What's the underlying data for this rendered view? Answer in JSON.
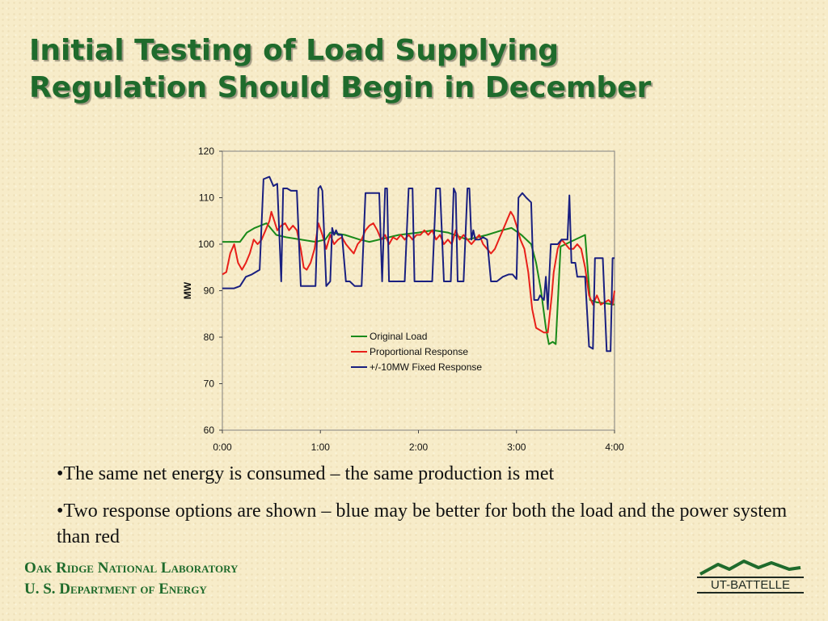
{
  "title_line1": "Initial Testing of Load Supplying",
  "title_line2": "Regulation Should Begin in December",
  "bullets": [
    "•The same net energy is consumed – the same production is met",
    "•Two response options are shown – blue may be better for both the load and the power system than red"
  ],
  "footer": {
    "org_line1": "Oak Ridge National Laboratory",
    "org_line2": "U. S. Department of Energy",
    "logo_text": "UT-BATTELLE"
  },
  "colors": {
    "title": "#1f6b2c",
    "original": "#1a8a1a",
    "proportional": "#e8201a",
    "fixed": "#1a2080"
  },
  "chart_data": {
    "type": "line",
    "ylabel": "MW",
    "xlabel": "",
    "ylim": [
      60,
      120
    ],
    "yticks": [
      "60",
      "70",
      "80",
      "90",
      "100",
      "110",
      "120"
    ],
    "xlim": [
      0,
      4
    ],
    "xticks": [
      "0:00",
      "1:00",
      "2:00",
      "3:00",
      "4:00"
    ],
    "legend_position": "center",
    "series": [
      {
        "name": "Original Load",
        "color": "#1a8a1a",
        "points": [
          [
            0,
            100.5
          ],
          [
            0.08,
            100.5
          ],
          [
            0.18,
            100.5
          ],
          [
            0.25,
            102.5
          ],
          [
            0.33,
            103.5
          ],
          [
            0.45,
            104.5
          ],
          [
            0.55,
            102
          ],
          [
            0.65,
            101.5
          ],
          [
            0.8,
            101
          ],
          [
            0.95,
            100.5
          ],
          [
            1.05,
            101
          ],
          [
            1.1,
            102.5
          ],
          [
            1.25,
            102
          ],
          [
            1.4,
            101
          ],
          [
            1.5,
            100.5
          ],
          [
            1.6,
            101
          ],
          [
            1.8,
            102
          ],
          [
            2.0,
            102.5
          ],
          [
            2.15,
            103
          ],
          [
            2.3,
            102.5
          ],
          [
            2.5,
            101
          ],
          [
            2.7,
            102
          ],
          [
            2.85,
            103
          ],
          [
            2.95,
            103.5
          ],
          [
            3.05,
            102
          ],
          [
            3.15,
            100
          ],
          [
            3.2,
            96
          ],
          [
            3.25,
            90
          ],
          [
            3.3,
            82
          ],
          [
            3.33,
            78.5
          ],
          [
            3.37,
            79
          ],
          [
            3.4,
            78.5
          ],
          [
            3.45,
            99.5
          ],
          [
            3.55,
            100.5
          ],
          [
            3.65,
            101.5
          ],
          [
            3.7,
            102
          ],
          [
            3.75,
            88
          ],
          [
            3.82,
            87.5
          ],
          [
            3.9,
            87.3
          ],
          [
            4.0,
            87
          ]
        ]
      },
      {
        "name": "Proportional Response",
        "color": "#e8201a",
        "points": [
          [
            0,
            93.5
          ],
          [
            0.04,
            94
          ],
          [
            0.08,
            98
          ],
          [
            0.12,
            100
          ],
          [
            0.16,
            96
          ],
          [
            0.2,
            94.5
          ],
          [
            0.24,
            96
          ],
          [
            0.28,
            98
          ],
          [
            0.32,
            101
          ],
          [
            0.36,
            100
          ],
          [
            0.4,
            101
          ],
          [
            0.44,
            103
          ],
          [
            0.48,
            105
          ],
          [
            0.5,
            107
          ],
          [
            0.53,
            105
          ],
          [
            0.56,
            103
          ],
          [
            0.6,
            104
          ],
          [
            0.64,
            104.5
          ],
          [
            0.68,
            103
          ],
          [
            0.72,
            104
          ],
          [
            0.76,
            103
          ],
          [
            0.8,
            99
          ],
          [
            0.83,
            95
          ],
          [
            0.86,
            94.5
          ],
          [
            0.9,
            96
          ],
          [
            0.94,
            99
          ],
          [
            0.98,
            104.5
          ],
          [
            1.02,
            102
          ],
          [
            1.06,
            99
          ],
          [
            1.1,
            102
          ],
          [
            1.14,
            100
          ],
          [
            1.18,
            101
          ],
          [
            1.22,
            101.5
          ],
          [
            1.26,
            100
          ],
          [
            1.3,
            99
          ],
          [
            1.34,
            98
          ],
          [
            1.38,
            100
          ],
          [
            1.42,
            101
          ],
          [
            1.46,
            103
          ],
          [
            1.5,
            104
          ],
          [
            1.54,
            104.5
          ],
          [
            1.58,
            103
          ],
          [
            1.62,
            101
          ],
          [
            1.66,
            102
          ],
          [
            1.7,
            100
          ],
          [
            1.74,
            101.5
          ],
          [
            1.78,
            101
          ],
          [
            1.82,
            102
          ],
          [
            1.86,
            101
          ],
          [
            1.9,
            102
          ],
          [
            1.94,
            101
          ],
          [
            1.98,
            102
          ],
          [
            2.02,
            102
          ],
          [
            2.06,
            103
          ],
          [
            2.1,
            102
          ],
          [
            2.14,
            103
          ],
          [
            2.18,
            101
          ],
          [
            2.22,
            102
          ],
          [
            2.26,
            100
          ],
          [
            2.3,
            101
          ],
          [
            2.34,
            100
          ],
          [
            2.38,
            103
          ],
          [
            2.42,
            101
          ],
          [
            2.46,
            102
          ],
          [
            2.5,
            101
          ],
          [
            2.54,
            100
          ],
          [
            2.58,
            101
          ],
          [
            2.62,
            102
          ],
          [
            2.66,
            100
          ],
          [
            2.7,
            99
          ],
          [
            2.74,
            98
          ],
          [
            2.78,
            99
          ],
          [
            2.82,
            101
          ],
          [
            2.86,
            103
          ],
          [
            2.9,
            105
          ],
          [
            2.94,
            107
          ],
          [
            2.97,
            106
          ],
          [
            3.0,
            104
          ],
          [
            3.04,
            101
          ],
          [
            3.08,
            99
          ],
          [
            3.12,
            94
          ],
          [
            3.16,
            86
          ],
          [
            3.2,
            82
          ],
          [
            3.24,
            81.5
          ],
          [
            3.28,
            81
          ],
          [
            3.32,
            81
          ],
          [
            3.36,
            89
          ],
          [
            3.38,
            94
          ],
          [
            3.42,
            99
          ],
          [
            3.46,
            101
          ],
          [
            3.5,
            100
          ],
          [
            3.54,
            99
          ],
          [
            3.58,
            99
          ],
          [
            3.62,
            100
          ],
          [
            3.66,
            99
          ],
          [
            3.7,
            95
          ],
          [
            3.74,
            89
          ],
          [
            3.78,
            87
          ],
          [
            3.82,
            89
          ],
          [
            3.86,
            87
          ],
          [
            3.9,
            87.5
          ],
          [
            3.94,
            88
          ],
          [
            3.98,
            87
          ],
          [
            4.0,
            90
          ]
        ]
      },
      {
        "name": "+/-10MW Fixed Response",
        "color": "#1a2080",
        "points": [
          [
            0,
            90.5
          ],
          [
            0.06,
            90.5
          ],
          [
            0.12,
            90.5
          ],
          [
            0.18,
            91
          ],
          [
            0.24,
            93
          ],
          [
            0.3,
            93.5
          ],
          [
            0.38,
            94.5
          ],
          [
            0.42,
            114
          ],
          [
            0.48,
            114.5
          ],
          [
            0.52,
            112.5
          ],
          [
            0.56,
            113
          ],
          [
            0.6,
            92
          ],
          [
            0.62,
            112
          ],
          [
            0.66,
            112
          ],
          [
            0.7,
            111.5
          ],
          [
            0.76,
            111.5
          ],
          [
            0.8,
            91
          ],
          [
            0.84,
            91
          ],
          [
            0.9,
            91
          ],
          [
            0.95,
            91
          ],
          [
            0.98,
            112
          ],
          [
            1.0,
            112.5
          ],
          [
            1.02,
            111.5
          ],
          [
            1.06,
            91
          ],
          [
            1.1,
            92
          ],
          [
            1.12,
            103.5
          ],
          [
            1.14,
            102
          ],
          [
            1.16,
            103
          ],
          [
            1.18,
            102
          ],
          [
            1.22,
            102
          ],
          [
            1.26,
            92
          ],
          [
            1.3,
            92
          ],
          [
            1.35,
            91
          ],
          [
            1.42,
            91
          ],
          [
            1.46,
            111
          ],
          [
            1.5,
            111
          ],
          [
            1.55,
            111
          ],
          [
            1.6,
            111
          ],
          [
            1.63,
            92
          ],
          [
            1.66,
            112
          ],
          [
            1.68,
            112
          ],
          [
            1.7,
            92
          ],
          [
            1.76,
            92
          ],
          [
            1.82,
            92
          ],
          [
            1.86,
            92
          ],
          [
            1.9,
            112
          ],
          [
            1.94,
            112
          ],
          [
            1.96,
            92
          ],
          [
            2.02,
            92
          ],
          [
            2.08,
            92
          ],
          [
            2.14,
            92
          ],
          [
            2.18,
            112
          ],
          [
            2.22,
            112
          ],
          [
            2.26,
            92
          ],
          [
            2.3,
            92
          ],
          [
            2.33,
            92
          ],
          [
            2.36,
            112
          ],
          [
            2.38,
            111
          ],
          [
            2.4,
            92
          ],
          [
            2.46,
            92
          ],
          [
            2.5,
            112
          ],
          [
            2.52,
            112
          ],
          [
            2.54,
            101
          ],
          [
            2.56,
            103
          ],
          [
            2.58,
            101
          ],
          [
            2.62,
            101
          ],
          [
            2.66,
            101.5
          ],
          [
            2.7,
            101
          ],
          [
            2.74,
            92
          ],
          [
            2.8,
            92
          ],
          [
            2.86,
            93
          ],
          [
            2.92,
            93.5
          ],
          [
            2.96,
            93.5
          ],
          [
            3.0,
            92.5
          ],
          [
            3.02,
            110
          ],
          [
            3.06,
            111
          ],
          [
            3.1,
            110
          ],
          [
            3.15,
            109
          ],
          [
            3.18,
            88
          ],
          [
            3.22,
            88
          ],
          [
            3.24,
            89
          ],
          [
            3.28,
            88
          ],
          [
            3.3,
            93
          ],
          [
            3.32,
            86
          ],
          [
            3.35,
            100
          ],
          [
            3.38,
            100
          ],
          [
            3.42,
            100
          ],
          [
            3.46,
            101
          ],
          [
            3.5,
            101
          ],
          [
            3.52,
            101
          ],
          [
            3.54,
            110.5
          ],
          [
            3.56,
            96
          ],
          [
            3.6,
            96
          ],
          [
            3.62,
            93
          ],
          [
            3.66,
            93
          ],
          [
            3.7,
            93
          ],
          [
            3.74,
            78
          ],
          [
            3.78,
            77.5
          ],
          [
            3.8,
            97
          ],
          [
            3.84,
            97
          ],
          [
            3.88,
            97
          ],
          [
            3.92,
            77
          ],
          [
            3.96,
            77
          ],
          [
            3.98,
            97
          ],
          [
            4.0,
            97
          ]
        ]
      }
    ]
  }
}
